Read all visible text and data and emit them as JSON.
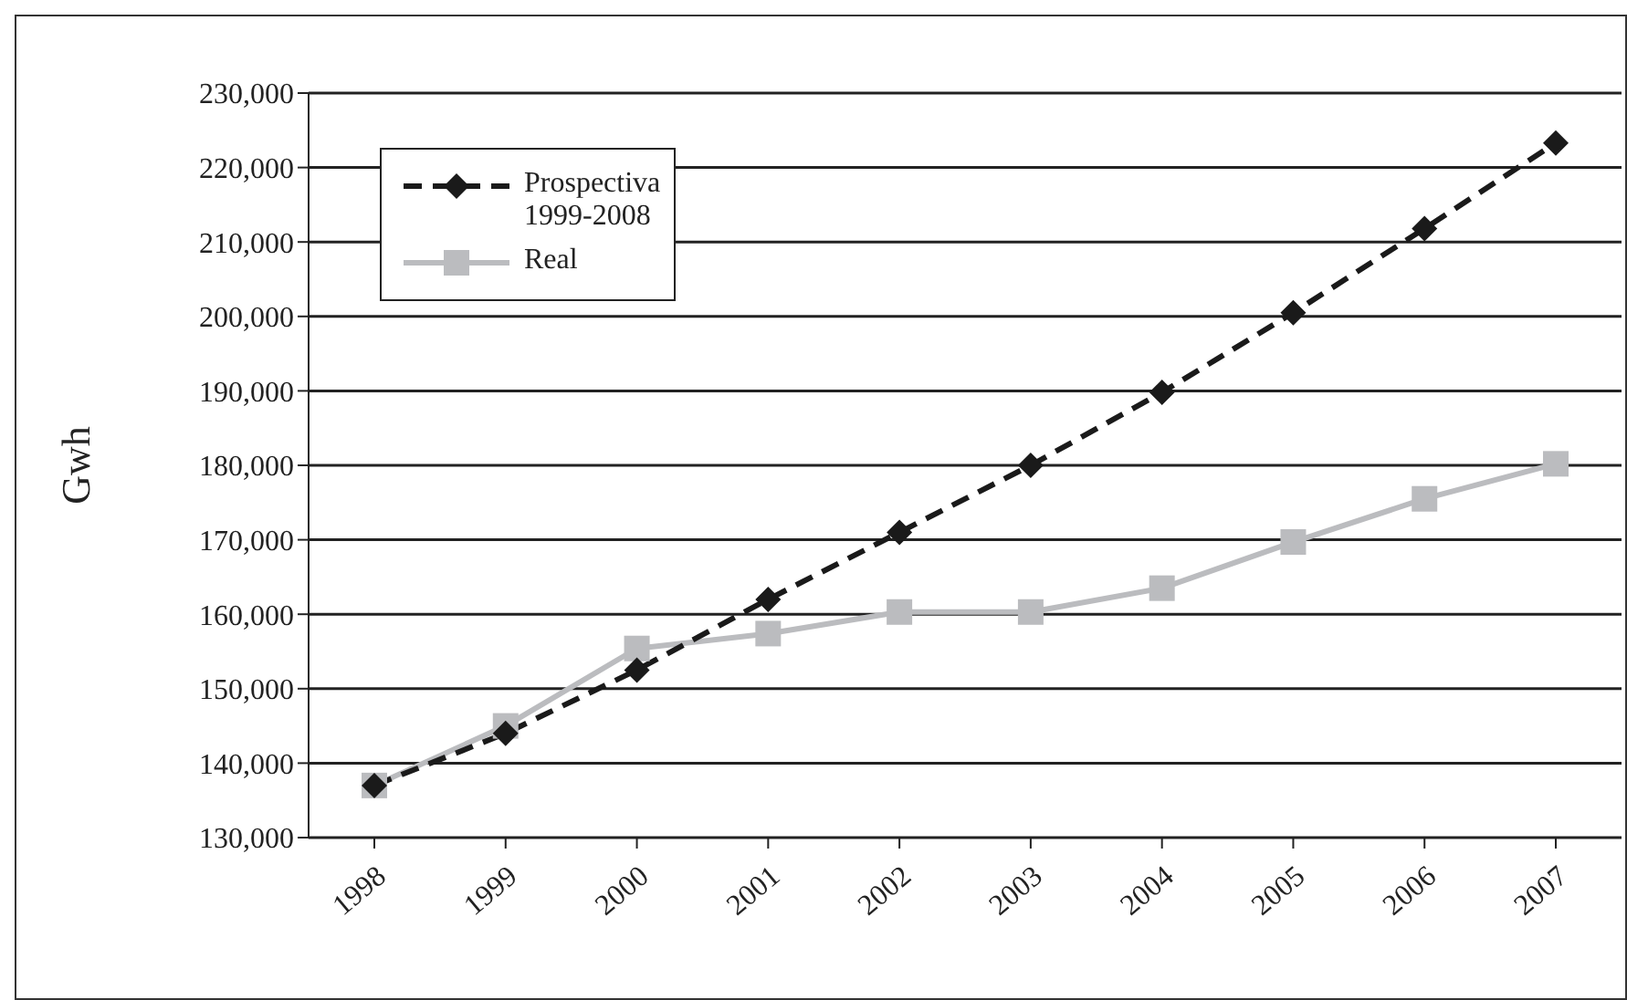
{
  "chart_data": {
    "type": "line",
    "ylabel": "Gwh",
    "categories": [
      "1998",
      "1999",
      "2000",
      "2001",
      "2002",
      "2003",
      "2004",
      "2005",
      "2006",
      "2007"
    ],
    "series": [
      {
        "name": "Prospectiva 1999-2008",
        "color": "#1a1a1a",
        "marker": "diamond",
        "line_style": "dashed",
        "values": [
          137000,
          144000,
          152500,
          162000,
          171000,
          180000,
          189800,
          200500,
          211800,
          223300
        ]
      },
      {
        "name": "Real",
        "color": "#bbbcbf",
        "marker": "square",
        "line_style": "solid",
        "values": [
          137000,
          145000,
          155400,
          157400,
          160300,
          160300,
          163500,
          169700,
          175500,
          180200
        ]
      }
    ],
    "ylim": [
      130000,
      230000
    ],
    "yticks": [
      {
        "value": 130000,
        "label": "130,000"
      },
      {
        "value": 140000,
        "label": "140,000"
      },
      {
        "value": 150000,
        "label": "150,000"
      },
      {
        "value": 160000,
        "label": "160,000"
      },
      {
        "value": 170000,
        "label": "170,000"
      },
      {
        "value": 180000,
        "label": "180,000"
      },
      {
        "value": 190000,
        "label": "190,000"
      },
      {
        "value": 200000,
        "label": "200,000"
      },
      {
        "value": 210000,
        "label": "210,000"
      },
      {
        "value": 220000,
        "label": "220,000"
      },
      {
        "value": 230000,
        "label": "230,000"
      }
    ],
    "grid": "y",
    "legend": "top left"
  }
}
